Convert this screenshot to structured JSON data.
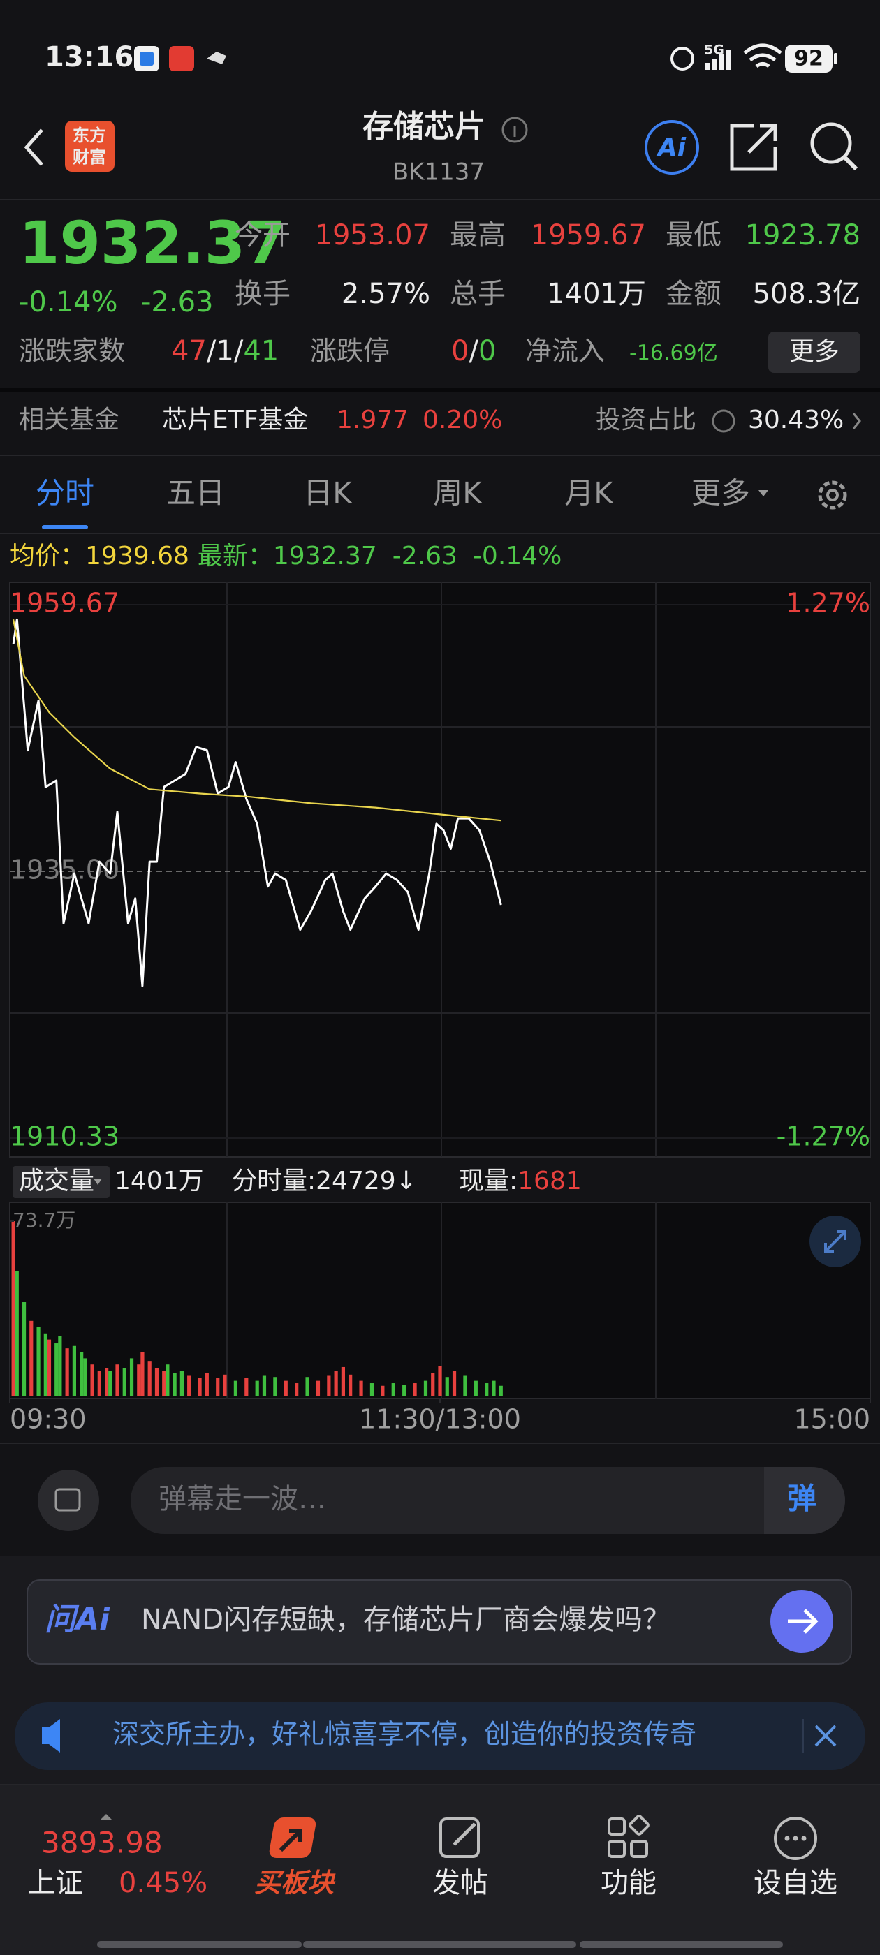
{
  "status_bar": {
    "time": "13:16",
    "network": "5G",
    "battery": "92"
  },
  "header": {
    "logo": [
      "东方",
      "财富"
    ],
    "title": "存储芯片",
    "code": "BK1137",
    "ai_label": "Ai"
  },
  "quote": {
    "price": "1932.37",
    "change_pct": "-0.14%",
    "change": "-2.63",
    "stats": [
      [
        "今开",
        "1953.07"
      ],
      [
        "最高",
        "1959.67"
      ],
      [
        "最低",
        "1923.78"
      ],
      [
        "换手",
        "2.57%"
      ],
      [
        "总手",
        "1401万"
      ],
      [
        "金额",
        "508.3亿"
      ]
    ],
    "breadth_label": "涨跌家数",
    "breadth": [
      "47",
      "/",
      "1",
      "/",
      "41"
    ],
    "limit_label": "涨跌停",
    "limit": [
      "0",
      "/",
      "0"
    ],
    "net_inflow_label": "净流入",
    "net_inflow": "-16.69亿",
    "more": "更多"
  },
  "fund": {
    "label": "相关基金",
    "name": "芯片ETF基金",
    "price": "1.977",
    "change": "0.20%",
    "ratio_label": "投资占比",
    "ratio": "30.43%"
  },
  "tabs": [
    "分时",
    "五日",
    "日K",
    "周K",
    "月K",
    "更多"
  ],
  "info": {
    "avg_label": "均价：",
    "avg": "1939.68",
    "last_label": "最新：",
    "last": "1932.37",
    "change": "-2.63",
    "change_pct": "-0.14%"
  },
  "chart_data": [
    {
      "type": "line",
      "xlim": [
        0,
        240
      ],
      "ylim": [
        1910.33,
        1959.67
      ],
      "yticks": [
        1959.67,
        {
          "value": 1935,
          "label": "1935.00"
        },
        1910.33
      ],
      "y2lim": [
        -1.27,
        1.27
      ],
      "y2ticks": [
        {
          "value": 1.27,
          "label": "1.27%"
        },
        {
          "value": -1.27,
          "label": "-1.27%"
        }
      ],
      "series": [
        {
          "color": "#ffffff",
          "x": [
            1,
            2,
            5,
            8,
            10,
            13,
            15,
            18,
            22,
            25,
            28,
            30,
            33,
            35,
            37,
            39,
            41,
            43,
            46,
            49,
            52,
            55,
            58,
            61,
            63,
            66,
            69,
            72,
            74,
            77,
            81,
            84,
            88,
            90,
            93,
            95,
            99,
            102,
            105,
            108,
            111,
            114,
            117,
            119,
            121,
            123,
            125,
            128,
            131,
            134,
            137
          ],
          "values": [
            1956.0,
            1958.3,
            1946.2,
            1950.8,
            1942.8,
            1943.4,
            1930.2,
            1934.8,
            1930.2,
            1935.9,
            1934.8,
            1940.5,
            1930.2,
            1932.5,
            1924.4,
            1935.9,
            1935.9,
            1942.8,
            1943.4,
            1944.0,
            1946.5,
            1946.2,
            1942.2,
            1942.8,
            1945.1,
            1941.7,
            1939.4,
            1933.6,
            1934.8,
            1934.2,
            1929.6,
            1931.3,
            1934.2,
            1934.8,
            1931.3,
            1929.6,
            1932.5,
            1933.6,
            1934.8,
            1934.2,
            1933.1,
            1929.6,
            1934.8,
            1939.4,
            1938.8,
            1937.1,
            1939.9,
            1939.9,
            1938.8,
            1935.9,
            1931.9
          ]
        },
        {
          "color": "#e8d44d",
          "x": [
            1,
            4,
            11,
            18,
            28,
            39,
            53,
            67,
            84,
            102,
            119,
            137
          ],
          "values": [
            1958.3,
            1953.1,
            1949.7,
            1947.4,
            1944.5,
            1942.6,
            1942.2,
            1941.9,
            1941.3,
            1940.9,
            1940.3,
            1939.7
          ]
        }
      ]
    },
    {
      "type": "bar",
      "xlim": [
        0,
        240
      ],
      "xticks": [
        {
          "value": 0,
          "label": "09:30"
        },
        {
          "value": 120,
          "label": "11:30/13:00"
        },
        {
          "value": 240,
          "label": "15:00"
        }
      ],
      "ylim": [
        0,
        73.7
      ],
      "yticks": [
        {
          "value": 73.7,
          "label": "73.7万"
        }
      ],
      "x": [
        1,
        2,
        4,
        6,
        8,
        10,
        11,
        13,
        14,
        16,
        18,
        20,
        21,
        23,
        25,
        27,
        28,
        30,
        32,
        34,
        36,
        37,
        39,
        41,
        43,
        44,
        46,
        48,
        50,
        53,
        55,
        58,
        60,
        63,
        66,
        69,
        71,
        74,
        77,
        80,
        83,
        86,
        89,
        91,
        93,
        95,
        98,
        101,
        104,
        107,
        110,
        113,
        116,
        118,
        120,
        122,
        124,
        127,
        130,
        133,
        135,
        137
      ],
      "values": [
        73.7,
        52.6,
        39.5,
        31.6,
        28.9,
        26.3,
        23.7,
        22.1,
        25.3,
        20.0,
        21.0,
        18.4,
        15.8,
        13.2,
        10.5,
        11.6,
        10.5,
        13.2,
        11.6,
        15.8,
        13.2,
        18.4,
        14.7,
        11.6,
        10.5,
        13.2,
        9.5,
        10.5,
        8.4,
        7.4,
        9.5,
        7.4,
        8.9,
        6.3,
        7.4,
        6.3,
        8.4,
        7.9,
        6.3,
        5.3,
        7.9,
        6.3,
        8.4,
        10.5,
        12.1,
        8.9,
        6.3,
        5.3,
        4.2,
        5.3,
        4.7,
        5.3,
        6.3,
        9.5,
        12.6,
        7.9,
        10.5,
        8.4,
        6.3,
        5.3,
        6.3,
        4.2
      ],
      "colors": [
        "#e8413e",
        "#3fbf3f",
        "#3fbf3f",
        "#e8413e",
        "#3fbf3f",
        "#3fbf3f",
        "#e8413e",
        "#3fbf3f",
        "#3fbf3f",
        "#e8413e",
        "#3fbf3f",
        "#3fbf3f",
        "#3fbf3f",
        "#e8413e",
        "#e8413e",
        "#e8413e",
        "#3fbf3f",
        "#e8413e",
        "#3fbf3f",
        "#3fbf3f",
        "#e8413e",
        "#e8413e",
        "#e8413e",
        "#e8413e",
        "#e8413e",
        "#3fbf3f",
        "#3fbf3f",
        "#3fbf3f",
        "#e8413e",
        "#e8413e",
        "#e8413e",
        "#e8413e",
        "#e8413e",
        "#3fbf3f",
        "#e8413e",
        "#3fbf3f",
        "#3fbf3f",
        "#3fbf3f",
        "#e8413e",
        "#e8413e",
        "#3fbf3f",
        "#e8413e",
        "#e8413e",
        "#e8413e",
        "#e8413e",
        "#e8413e",
        "#e8413e",
        "#3fbf3f",
        "#e8413e",
        "#3fbf3f",
        "#3fbf3f",
        "#e8413e",
        "#3fbf3f",
        "#e8413e",
        "#e8413e",
        "#3fbf3f",
        "#e8413e",
        "#3fbf3f",
        "#3fbf3f",
        "#3fbf3f",
        "#3fbf3f",
        "#3fbf3f"
      ]
    }
  ],
  "volume_info": {
    "label": "成交量",
    "total": "1401万",
    "minute_label": "分时量:",
    "minute": "24729",
    "arrow": "↓",
    "current_label": "现量:",
    "current": "1681"
  },
  "comment": {
    "placeholder": "弹幕走一波…",
    "button": "弹"
  },
  "ai": {
    "label": "问Ai",
    "question": "NAND闪存短缺，存储芯片厂商会爆发吗？"
  },
  "banner": {
    "text": "深交所主办，好礼惊喜享不停，创造你的投资传奇"
  },
  "bottom_nav": {
    "index_value": "3893.98",
    "index_name": "上证",
    "index_change": "0.45%",
    "items": [
      "买板块",
      "发帖",
      "功能",
      "设自选"
    ]
  }
}
